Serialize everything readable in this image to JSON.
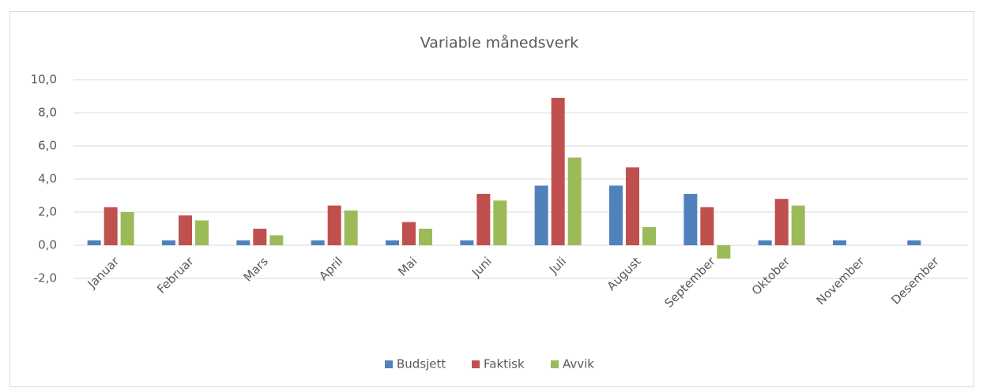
{
  "chart_data": {
    "type": "bar",
    "title": "Variable månedsverk",
    "categories": [
      "Januar",
      "Februar",
      "Mars",
      "April",
      "Mai",
      "Juni",
      "Juli",
      "August",
      "September",
      "Oktober",
      "November",
      "Desember"
    ],
    "series": [
      {
        "name": "Budsjett",
        "color": "#4f81bd",
        "values": [
          0.3,
          0.3,
          0.3,
          0.3,
          0.3,
          0.3,
          3.6,
          3.6,
          3.1,
          0.3,
          0.3,
          0.3
        ]
      },
      {
        "name": "Faktisk",
        "color": "#c0504d",
        "values": [
          2.3,
          1.8,
          1.0,
          2.4,
          1.4,
          3.1,
          8.9,
          4.7,
          2.3,
          2.8,
          null,
          null
        ]
      },
      {
        "name": "Avvik",
        "color": "#9bbb59",
        "values": [
          2.0,
          1.5,
          0.6,
          2.1,
          1.0,
          2.7,
          5.3,
          1.1,
          -0.8,
          2.4,
          null,
          null
        ]
      }
    ],
    "ylim": [
      -2,
      10
    ],
    "yticks": [
      {
        "value": -2,
        "label": "-2,0"
      },
      {
        "value": 0,
        "label": "0,0"
      },
      {
        "value": 2,
        "label": "2,0"
      },
      {
        "value": 4,
        "label": "4,0"
      },
      {
        "value": 6,
        "label": "6,0"
      },
      {
        "value": 8,
        "label": "8,0"
      },
      {
        "value": 10,
        "label": "10,0"
      }
    ],
    "grid": true,
    "legend": "bottom"
  }
}
